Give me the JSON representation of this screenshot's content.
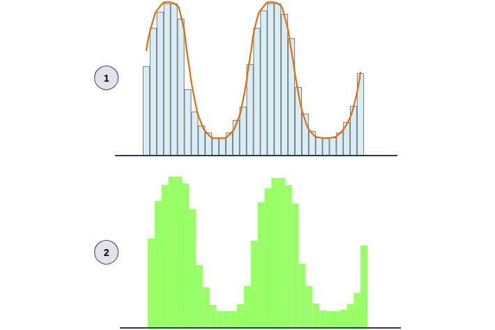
{
  "chart_data": [
    {
      "type": "bar",
      "title": "1",
      "tick_labels": false,
      "grid": false,
      "categories": [
        null,
        null,
        null,
        null,
        null,
        null,
        null,
        null,
        null,
        null,
        null,
        null,
        null,
        null,
        null,
        null,
        null,
        null,
        null,
        null,
        null,
        null,
        null,
        null,
        null,
        null,
        null,
        null,
        null,
        null,
        null,
        null
      ],
      "ylim": [
        0,
        220
      ],
      "series": [
        {
          "type": "bar",
          "color": "#d9edf4",
          "values": [
            128,
            183,
            206,
            218,
            218,
            196,
            95,
            63,
            43,
            33,
            26,
            26,
            33,
            51,
            70,
            131,
            183,
            208,
            218,
            218,
            203,
            168,
            98,
            60,
            35,
            26,
            26,
            26,
            33,
            48,
            71,
            118
          ]
        },
        {
          "type": "line",
          "color": "#e46c0a",
          "line_style": "solid",
          "values": [
            150,
            195,
            214,
            220,
            218,
            200,
            140,
            80,
            45,
            30,
            25,
            25,
            30,
            45,
            80,
            140,
            195,
            214,
            220,
            218,
            200,
            150,
            90,
            50,
            32,
            26,
            25,
            26,
            32,
            45,
            70,
            120
          ]
        }
      ]
    },
    {
      "type": "bar",
      "title": "2",
      "tick_labels": false,
      "grid": false,
      "categories": [
        null,
        null,
        null,
        null,
        null,
        null,
        null,
        null,
        null,
        null,
        null,
        null,
        null,
        null,
        null,
        null,
        null,
        null,
        null,
        null,
        null,
        null,
        null,
        null,
        null,
        null,
        null,
        null,
        null,
        null,
        null,
        null
      ],
      "ylim": [
        0,
        220
      ],
      "series": [
        {
          "type": "bar",
          "color": "#99ff66",
          "values": [
            128,
            182,
            205,
            217,
            217,
            207,
            170,
            90,
            58,
            33,
            24,
            24,
            24,
            34,
            60,
            125,
            180,
            200,
            215,
            215,
            205,
            178,
            92,
            60,
            35,
            25,
            24,
            24,
            26,
            34,
            50,
            118
          ]
        }
      ]
    }
  ]
}
